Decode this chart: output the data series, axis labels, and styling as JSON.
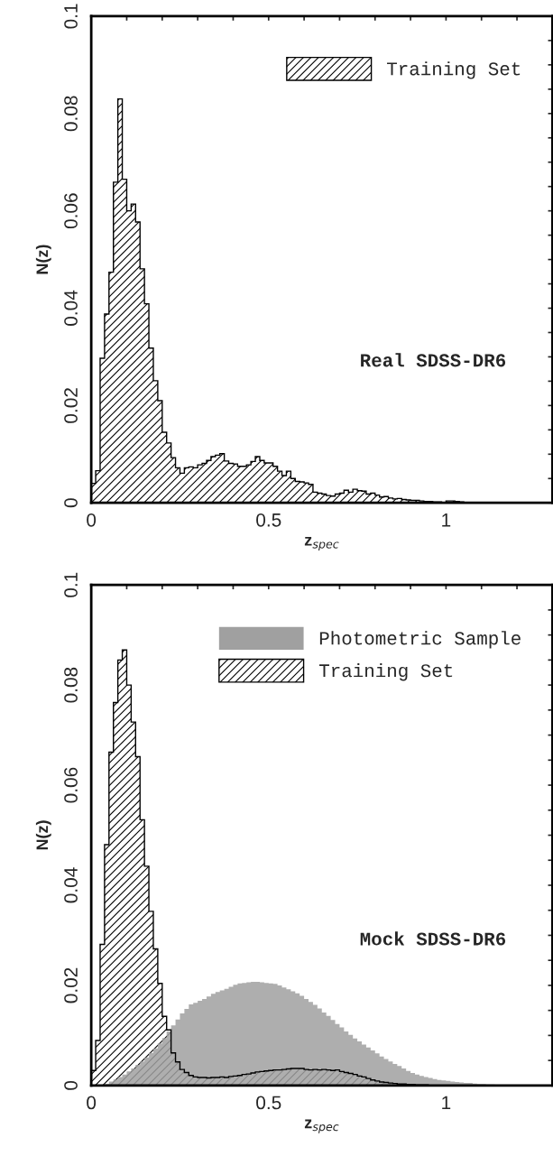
{
  "chart_data": [
    {
      "type": "histogram",
      "xlabel": "z$_{spec}$",
      "ylabel": "N(z)",
      "annotations": [
        "Real SDSS-DR6"
      ],
      "legend": "top right",
      "xlim": [
        0,
        1.3
      ],
      "ylim": [
        0,
        0.1
      ],
      "xticks": [
        0,
        {
          "value": 0.1,
          "label": null
        },
        {
          "value": 0.2,
          "label": null
        },
        {
          "value": 0.3,
          "label": null
        },
        {
          "value": 0.4,
          "label": null
        },
        0.5,
        {
          "value": 0.6,
          "label": null
        },
        {
          "value": 0.7,
          "label": null
        },
        {
          "value": 0.8,
          "label": null
        },
        {
          "value": 0.9,
          "label": null
        },
        1,
        {
          "value": 1.1,
          "label": null
        },
        {
          "value": 1.2,
          "label": null
        }
      ],
      "yticks": [
        0,
        {
          "value": 0.005,
          "label": null
        },
        {
          "value": 0.01,
          "label": null
        },
        {
          "value": 0.015,
          "label": null
        },
        0.02,
        {
          "value": 0.025,
          "label": null
        },
        {
          "value": 0.03,
          "label": null
        },
        {
          "value": 0.035,
          "label": null
        },
        0.04,
        {
          "value": 0.045,
          "label": null
        },
        {
          "value": 0.05,
          "label": null
        },
        {
          "value": 0.055,
          "label": null
        },
        0.06,
        {
          "value": 0.065,
          "label": null
        },
        {
          "value": 0.07,
          "label": null
        },
        {
          "value": 0.075,
          "label": null
        },
        0.08,
        {
          "value": 0.085,
          "label": null
        },
        {
          "value": 0.09,
          "label": null
        },
        {
          "value": 0.095,
          "label": null
        },
        0.1
      ],
      "bins": [
        0,
        0.0125,
        0.025,
        0.0375,
        0.05,
        0.0625,
        0.075,
        0.0875,
        0.1,
        0.1125,
        0.125,
        0.1375,
        0.15,
        0.1625,
        0.175,
        0.1875,
        0.2,
        0.2125,
        0.225,
        0.2375,
        0.25,
        0.2625,
        0.275,
        0.2875,
        0.3,
        0.3125,
        0.325,
        0.3375,
        0.35,
        0.3625,
        0.375,
        0.3875,
        0.4,
        0.4125,
        0.425,
        0.4375,
        0.45,
        0.4625,
        0.475,
        0.4875,
        0.5,
        0.5125,
        0.525,
        0.5375,
        0.55,
        0.5625,
        0.575,
        0.5875,
        0.6,
        0.6125,
        0.625,
        0.6375,
        0.65,
        0.6625,
        0.675,
        0.6875,
        0.7,
        0.7125,
        0.725,
        0.7375,
        0.75,
        0.7625,
        0.775,
        0.7875,
        0.8,
        0.8125,
        0.825,
        0.8375,
        0.85,
        0.8625,
        0.875,
        0.8875,
        0.9,
        0.9125,
        0.925,
        0.9375,
        0.95,
        0.9625,
        0.975,
        0.9875,
        1,
        1.0125,
        1.025,
        1.0375,
        1.05,
        1.0625,
        1.075,
        1.0875,
        1.1,
        1.1125,
        1.125,
        1.1375,
        1.15,
        1.1625,
        1.175,
        1.1875,
        1.2,
        1.2125,
        1.225,
        1.2375,
        1.25,
        1.2625,
        1.275,
        1.2875,
        1.3
      ],
      "series": [
        {
          "name": "Training Set",
          "color": "#000000",
          "values": [
            0.004,
            0.0066,
            0.0297,
            0.0388,
            0.0474,
            0.0659,
            0.083,
            0.0665,
            0.06,
            0.0614,
            0.0577,
            0.0481,
            0.0409,
            0.0318,
            0.0251,
            0.021,
            0.0145,
            0.0123,
            0.0093,
            0.0072,
            0.0061,
            0.0072,
            0.0074,
            0.0072,
            0.0078,
            0.0081,
            0.0087,
            0.0095,
            0.0098,
            0.0101,
            0.0086,
            0.0081,
            0.008,
            0.0075,
            0.0075,
            0.0078,
            0.0085,
            0.0095,
            0.0087,
            0.0082,
            0.0082,
            0.0075,
            0.0065,
            0.0056,
            0.0065,
            0.005,
            0.0044,
            0.0043,
            0.0041,
            0.0038,
            0.0022,
            0.002,
            0.0018,
            0.0015,
            0.0014,
            0.0018,
            0.002,
            0.0026,
            0.0022,
            0.0028,
            0.0025,
            0.0024,
            0.0018,
            0.002,
            0.0016,
            0.0012,
            0.0013,
            0.001,
            0.0008,
            0.0009,
            0.0007,
            0.0006,
            0.0005,
            0.0005,
            0.0004,
            0.0003,
            0.0003,
            0.0002,
            0.0002,
            0.0001,
            0.0004,
            0.0004,
            0.0003,
            0.0002,
            0.0001,
            0.0001,
            0.0001,
            0.0001,
            0,
            0,
            0,
            0,
            0,
            0,
            0,
            0,
            0,
            0,
            0,
            0,
            0,
            0,
            0,
            0
          ]
        }
      ]
    },
    {
      "type": "histogram",
      "xlabel": "z$_{spec}$",
      "ylabel": "N(z)",
      "annotations": [
        "Mock SDSS-DR6"
      ],
      "legend": "top right",
      "xlim": [
        0,
        1.3
      ],
      "ylim": [
        0,
        0.1
      ],
      "xticks": [
        0,
        {
          "value": 0.1,
          "label": null
        },
        {
          "value": 0.2,
          "label": null
        },
        {
          "value": 0.3,
          "label": null
        },
        {
          "value": 0.4,
          "label": null
        },
        0.5,
        {
          "value": 0.6,
          "label": null
        },
        {
          "value": 0.7,
          "label": null
        },
        {
          "value": 0.8,
          "label": null
        },
        {
          "value": 0.9,
          "label": null
        },
        1,
        {
          "value": 1.1,
          "label": null
        },
        {
          "value": 1.2,
          "label": null
        }
      ],
      "yticks": [
        0,
        {
          "value": 0.005,
          "label": null
        },
        {
          "value": 0.01,
          "label": null
        },
        {
          "value": 0.015,
          "label": null
        },
        0.02,
        {
          "value": 0.025,
          "label": null
        },
        {
          "value": 0.03,
          "label": null
        },
        {
          "value": 0.035,
          "label": null
        },
        0.04,
        {
          "value": 0.045,
          "label": null
        },
        {
          "value": 0.05,
          "label": null
        },
        {
          "value": 0.055,
          "label": null
        },
        0.06,
        {
          "value": 0.065,
          "label": null
        },
        {
          "value": 0.07,
          "label": null
        },
        {
          "value": 0.075,
          "label": null
        },
        0.08,
        {
          "value": 0.085,
          "label": null
        },
        {
          "value": 0.09,
          "label": null
        },
        {
          "value": 0.095,
          "label": null
        },
        0.1
      ],
      "bins": [
        0,
        0.0125,
        0.025,
        0.0375,
        0.05,
        0.0625,
        0.075,
        0.0875,
        0.1,
        0.1125,
        0.125,
        0.1375,
        0.15,
        0.1625,
        0.175,
        0.1875,
        0.2,
        0.2125,
        0.225,
        0.2375,
        0.25,
        0.2625,
        0.275,
        0.2875,
        0.3,
        0.3125,
        0.325,
        0.3375,
        0.35,
        0.3625,
        0.375,
        0.3875,
        0.4,
        0.4125,
        0.425,
        0.4375,
        0.45,
        0.4625,
        0.475,
        0.4875,
        0.5,
        0.5125,
        0.525,
        0.5375,
        0.55,
        0.5625,
        0.575,
        0.5875,
        0.6,
        0.6125,
        0.625,
        0.6375,
        0.65,
        0.6625,
        0.675,
        0.6875,
        0.7,
        0.7125,
        0.725,
        0.7375,
        0.75,
        0.7625,
        0.775,
        0.7875,
        0.8,
        0.8125,
        0.825,
        0.8375,
        0.85,
        0.8625,
        0.875,
        0.8875,
        0.9,
        0.9125,
        0.925,
        0.9375,
        0.95,
        0.9625,
        0.975,
        0.9875,
        1,
        1.0125,
        1.025,
        1.0375,
        1.05,
        1.0625,
        1.075,
        1.0875,
        1.1,
        1.1125,
        1.125,
        1.1375,
        1.15,
        1.1625,
        1.175,
        1.1875,
        1.2,
        1.2125,
        1.225,
        1.2375,
        1.25,
        1.2625,
        1.275,
        1.2875,
        1.3
      ],
      "series": [
        {
          "name": "Photometric Sample",
          "color": "#a0a0a0",
          "values": [
            0,
            0,
            0,
            0.0003,
            0.0008,
            0.0012,
            0.0017,
            0.0022,
            0.0028,
            0.0034,
            0.0041,
            0.0048,
            0.0056,
            0.0065,
            0.0074,
            0.0084,
            0.0095,
            0.0108,
            0.012,
            0.0132,
            0.0144,
            0.0153,
            0.0162,
            0.0165,
            0.0169,
            0.0173,
            0.0178,
            0.0183,
            0.0187,
            0.019,
            0.0193,
            0.0197,
            0.0201,
            0.0204,
            0.0205,
            0.0206,
            0.0207,
            0.0207,
            0.0206,
            0.0205,
            0.0204,
            0.0203,
            0.02,
            0.0196,
            0.0192,
            0.0188,
            0.0184,
            0.0179,
            0.0173,
            0.0167,
            0.0161,
            0.0154,
            0.0146,
            0.0139,
            0.0131,
            0.0123,
            0.0116,
            0.0108,
            0.0101,
            0.0094,
            0.0088,
            0.0082,
            0.0076,
            0.007,
            0.0064,
            0.0058,
            0.0053,
            0.0048,
            0.0043,
            0.0039,
            0.0034,
            0.0029,
            0.0025,
            0.0022,
            0.0019,
            0.0017,
            0.0015,
            0.0013,
            0.0011,
            0.001,
            0.0009,
            0.0008,
            0.0007,
            0.0006,
            0.0005,
            0.0005,
            0.0004,
            0.0003,
            0.0003,
            0.0002,
            0.0002,
            0.0001,
            0.0001,
            0,
            0,
            0,
            0,
            0,
            0,
            0,
            0,
            0,
            0,
            0
          ]
        },
        {
          "name": "Training Set",
          "color": "#000000",
          "values": [
            0.003,
            0.009,
            0.0282,
            0.0481,
            0.0666,
            0.0765,
            0.085,
            0.087,
            0.08,
            0.0726,
            0.0657,
            0.0531,
            0.0438,
            0.0348,
            0.0273,
            0.0204,
            0.0138,
            0.0111,
            0.0065,
            0.0047,
            0.0032,
            0.0026,
            0.002,
            0.0017,
            0.0016,
            0.0016,
            0.0015,
            0.0016,
            0.0016,
            0.0017,
            0.0016,
            0.0018,
            0.0019,
            0.002,
            0.0022,
            0.0023,
            0.0025,
            0.0027,
            0.0028,
            0.0029,
            0.003,
            0.0031,
            0.0031,
            0.0032,
            0.0033,
            0.0034,
            0.0034,
            0.0034,
            0.0032,
            0.0031,
            0.0032,
            0.0031,
            0.0032,
            0.0031,
            0.003,
            0.0031,
            0.0028,
            0.0026,
            0.0024,
            0.0022,
            0.0019,
            0.0017,
            0.0014,
            0.0011,
            0.0009,
            0.0007,
            0.0006,
            0.0005,
            0.0004,
            0.0003,
            0.0003,
            0.0002,
            0.0002,
            0.0001,
            0.0001,
            0.0001,
            0,
            0,
            0,
            0,
            0,
            0,
            0,
            0,
            0,
            0,
            0,
            0,
            0,
            0,
            0,
            0,
            0,
            0,
            0,
            0,
            0,
            0,
            0,
            0,
            0,
            0,
            0,
            0
          ]
        }
      ]
    }
  ]
}
